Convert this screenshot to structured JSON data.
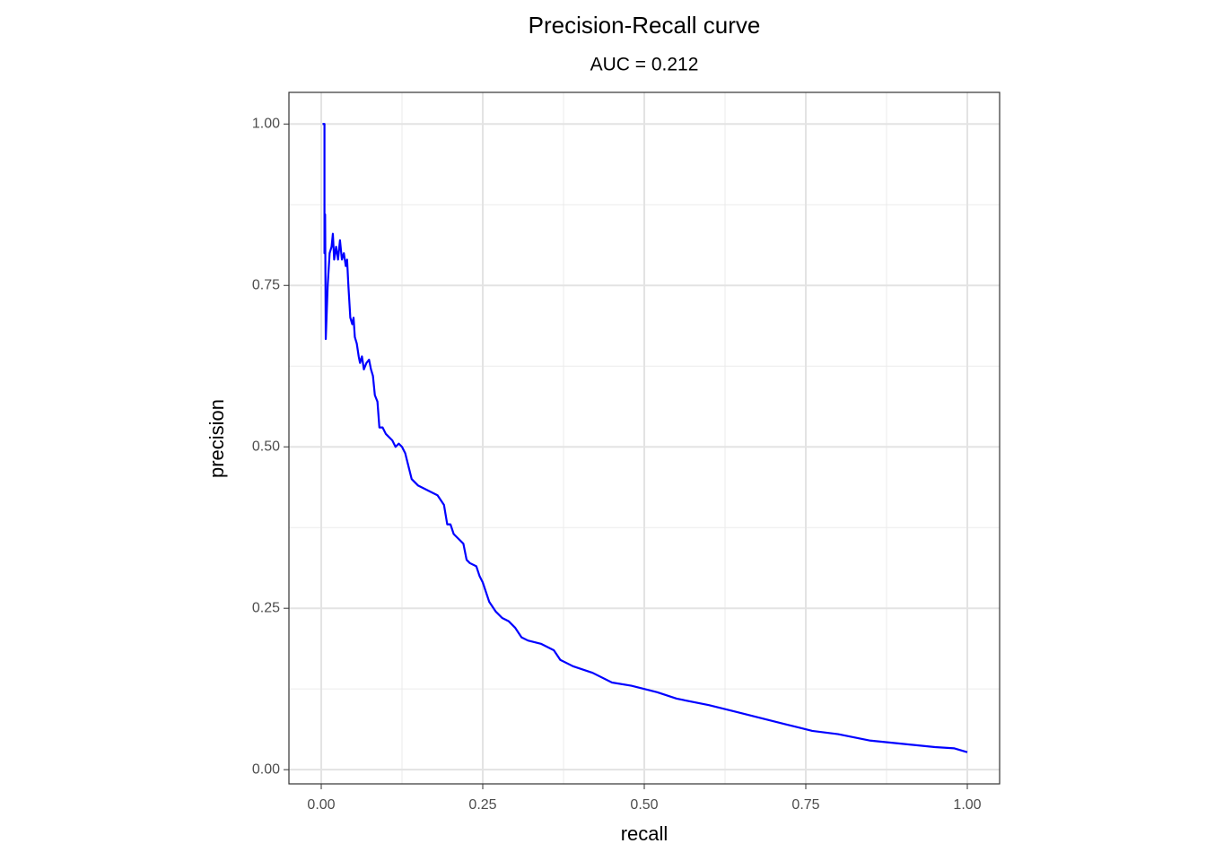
{
  "chart_data": {
    "type": "line",
    "title": "Precision-Recall curve",
    "subtitle": "AUC =  0.212",
    "x_label": "recall",
    "y_label": "precision",
    "xlim": [
      -0.05,
      1.05
    ],
    "ylim": [
      -0.022,
      1.049
    ],
    "xticks": [
      {
        "value": 0,
        "label": "0.00"
      },
      {
        "value": 0.25,
        "label": "0.25"
      },
      {
        "value": 0.5,
        "label": "0.50"
      },
      {
        "value": 0.75,
        "label": "0.75"
      },
      {
        "value": 1,
        "label": "1.00"
      }
    ],
    "yticks": [
      {
        "value": 0,
        "label": "0.00"
      },
      {
        "value": 0.25,
        "label": "0.25"
      },
      {
        "value": 0.5,
        "label": "0.50"
      },
      {
        "value": 0.75,
        "label": "0.75"
      },
      {
        "value": 1,
        "label": "1.00"
      }
    ],
    "x_minor_ticks": [
      0.125,
      0.375,
      0.625,
      0.875
    ],
    "y_minor_ticks": [
      0.125,
      0.375,
      0.625,
      0.875
    ],
    "grid": true,
    "series": [
      {
        "color": "#0000ff",
        "x": [
          0.002,
          0.005,
          0.005,
          0.006,
          0.007,
          0.01,
          0.013,
          0.016,
          0.018,
          0.02,
          0.023,
          0.026,
          0.029,
          0.032,
          0.035,
          0.038,
          0.04,
          0.042,
          0.045,
          0.048,
          0.05,
          0.052,
          0.055,
          0.058,
          0.06,
          0.063,
          0.066,
          0.07,
          0.074,
          0.077,
          0.08,
          0.083,
          0.087,
          0.09,
          0.095,
          0.1,
          0.105,
          0.11,
          0.115,
          0.12,
          0.125,
          0.13,
          0.135,
          0.14,
          0.145,
          0.15,
          0.16,
          0.17,
          0.18,
          0.19,
          0.195,
          0.2,
          0.205,
          0.21,
          0.22,
          0.225,
          0.23,
          0.24,
          0.245,
          0.25,
          0.26,
          0.27,
          0.28,
          0.29,
          0.3,
          0.31,
          0.32,
          0.34,
          0.36,
          0.37,
          0.39,
          0.42,
          0.45,
          0.48,
          0.52,
          0.55,
          0.6,
          0.64,
          0.68,
          0.72,
          0.76,
          0.8,
          0.85,
          0.9,
          0.95,
          0.98,
          1.0
        ],
        "values": [
          1.0,
          1.0,
          0.8,
          0.86,
          0.667,
          0.75,
          0.8,
          0.81,
          0.83,
          0.79,
          0.81,
          0.79,
          0.82,
          0.79,
          0.8,
          0.78,
          0.79,
          0.75,
          0.7,
          0.69,
          0.7,
          0.67,
          0.66,
          0.64,
          0.63,
          0.64,
          0.62,
          0.63,
          0.635,
          0.62,
          0.61,
          0.58,
          0.57,
          0.53,
          0.53,
          0.52,
          0.515,
          0.51,
          0.5,
          0.505,
          0.5,
          0.49,
          0.47,
          0.45,
          0.445,
          0.44,
          0.435,
          0.43,
          0.425,
          0.41,
          0.38,
          0.38,
          0.365,
          0.36,
          0.35,
          0.325,
          0.32,
          0.315,
          0.3,
          0.29,
          0.26,
          0.245,
          0.235,
          0.23,
          0.22,
          0.205,
          0.2,
          0.195,
          0.185,
          0.17,
          0.16,
          0.15,
          0.135,
          0.13,
          0.12,
          0.11,
          0.1,
          0.09,
          0.08,
          0.07,
          0.06,
          0.055,
          0.045,
          0.04,
          0.035,
          0.033,
          0.027
        ]
      }
    ]
  }
}
